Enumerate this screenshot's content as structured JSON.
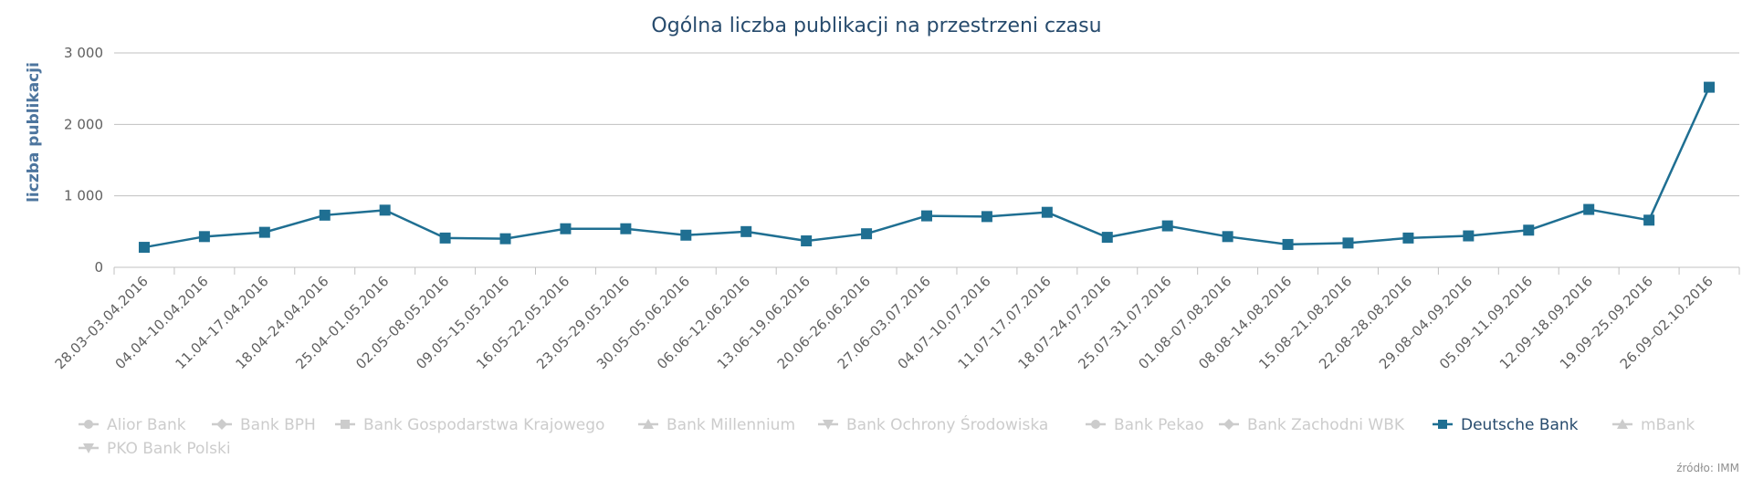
{
  "chart_data": {
    "type": "line",
    "title": "Ogólna liczba publikacji na przestrzeni czasu",
    "ylabel": "liczba publikacji",
    "xlabel": "",
    "ylim": [
      0,
      3000
    ],
    "yticks": [
      0,
      1000,
      2000,
      3000
    ],
    "ytick_labels": [
      "0",
      "1 000",
      "2 000",
      "3 000"
    ],
    "grid": true,
    "legend_position": "bottom",
    "categories": [
      "28.03–03.04.2016",
      "04.04–10.04.2016",
      "11.04–17.04.2016",
      "18.04–24.04.2016",
      "25.04–01.05.2016",
      "02.05–08.05.2016",
      "09.05–15.05.2016",
      "16.05–22.05.2016",
      "23.05–29.05.2016",
      "30.05–05.06.2016",
      "06.06–12.06.2016",
      "13.06–19.06.2016",
      "20.06–26.06.2016",
      "27.06–03.07.2016",
      "04.07–10.07.2016",
      "11.07–17.07.2016",
      "18.07–24.07.2016",
      "25.07–31.07.2016",
      "01.08–07.08.2016",
      "08.08–14.08.2016",
      "15.08–21.08.2016",
      "22.08–28.08.2016",
      "29.08–04.09.2016",
      "05.09–11.09.2016",
      "12.09–18.09.2016",
      "19.09–25.09.2016",
      "26.09–02.10.2016"
    ],
    "series": [
      {
        "name": "Deutsche Bank",
        "color": "#1f6f92",
        "marker": "square",
        "values": [
          280,
          430,
          490,
          730,
          800,
          410,
          400,
          540,
          540,
          450,
          500,
          370,
          470,
          720,
          710,
          770,
          420,
          580,
          430,
          320,
          340,
          410,
          440,
          520,
          810,
          660,
          2520
        ]
      }
    ],
    "legend": [
      {
        "name": "Alior Bank",
        "marker": "circle",
        "active": false
      },
      {
        "name": "Bank BPH",
        "marker": "diamond",
        "active": false
      },
      {
        "name": "Bank Gospodarstwa Krajowego",
        "marker": "square",
        "active": false
      },
      {
        "name": "Bank Millennium",
        "marker": "triangle",
        "active": false
      },
      {
        "name": "Bank Ochrony Środowiska",
        "marker": "triangle-down",
        "active": false
      },
      {
        "name": "Bank Pekao",
        "marker": "circle",
        "active": false
      },
      {
        "name": "Bank Zachodni WBK",
        "marker": "diamond",
        "active": false
      },
      {
        "name": "Deutsche Bank",
        "marker": "square",
        "active": true
      },
      {
        "name": "mBank",
        "marker": "triangle",
        "active": false
      },
      {
        "name": "PKO Bank Polski",
        "marker": "triangle-down",
        "active": false
      }
    ],
    "credits": "źródło: IMM"
  },
  "colors": {
    "active_series": "#1f6f92",
    "legend_active_text": "#274b6d",
    "legend_inactive": "#cccccc",
    "grid": "#c0c0c0"
  }
}
